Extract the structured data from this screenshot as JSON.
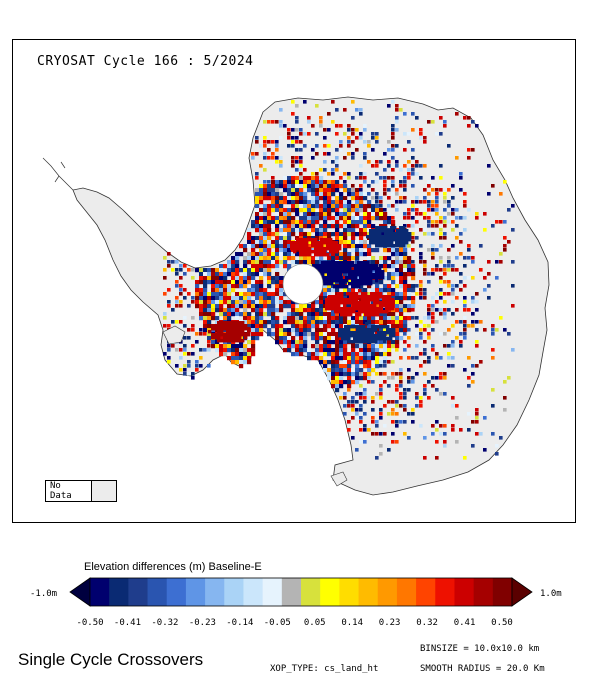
{
  "map": {
    "title": "CRYOSAT Cycle 166 : 5/2024",
    "nodata_label": "No Data",
    "nodata_color": "#ececec",
    "land_color": "#ececec",
    "coast_color": "#333333"
  },
  "legend": {
    "title": "Elevation differences (m) Baseline-E",
    "min_label": "-1.0m",
    "max_label": "1.0m",
    "tick_labels": [
      "-0.50",
      "-0.41",
      "-0.32",
      "-0.23",
      "-0.14",
      "-0.05",
      "0.05",
      "0.14",
      "0.23",
      "0.32",
      "0.41",
      "0.50"
    ],
    "colors": [
      "#00006e",
      "#0a2a73",
      "#1f3d8c",
      "#2a55b0",
      "#3d6fd2",
      "#5f95e6",
      "#86b6f0",
      "#aad3f6",
      "#cbe6fb",
      "#e6f3fd",
      "#b4b4b4",
      "#d7e13c",
      "#ffff00",
      "#ffdd00",
      "#ffbb00",
      "#ff9900",
      "#ff7700",
      "#ff4400",
      "#ee1100",
      "#cc0000",
      "#a50000",
      "#800000"
    ],
    "low_arrow_color": "#00003f",
    "high_arrow_color": "#5a0000"
  },
  "footer": {
    "title": "Single Cycle Crossovers",
    "xop_type": "XOP_TYPE: cs_land_ht",
    "binsize": "BINSIZE = 10.0x10.0 km",
    "smooth_radius": "SMOOTH RADIUS =  20.0 Km"
  }
}
